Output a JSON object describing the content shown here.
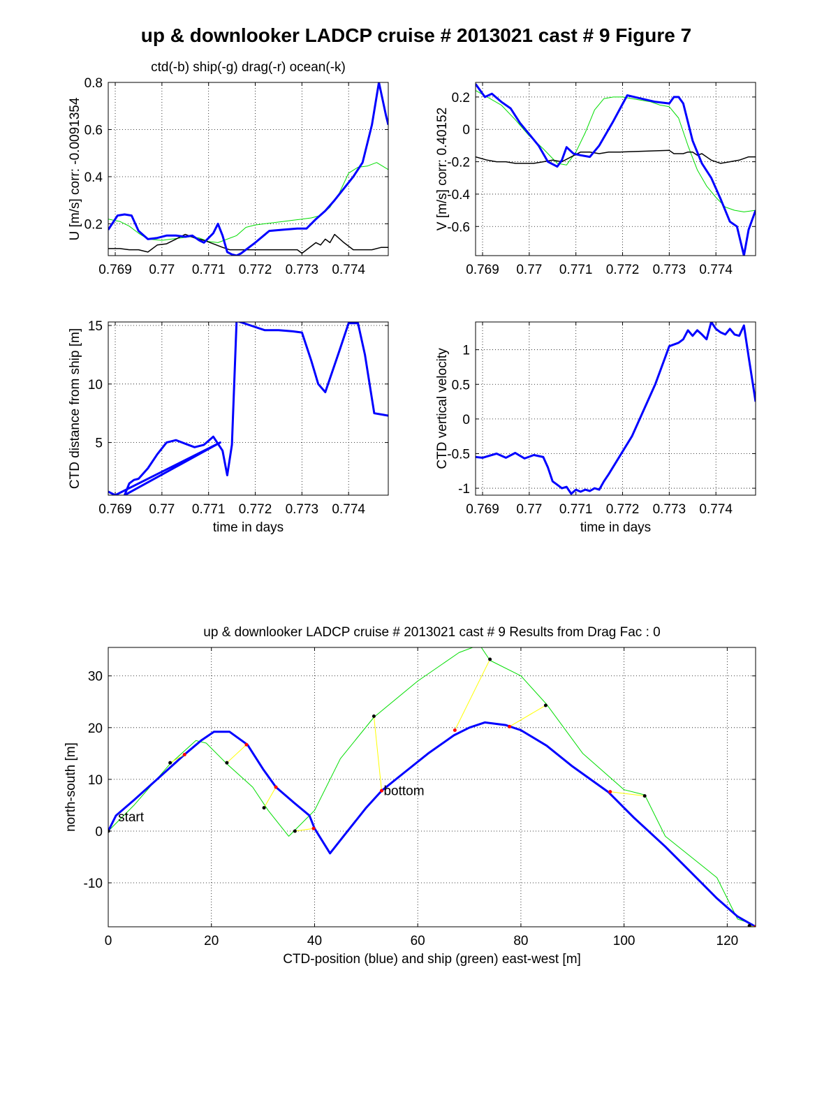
{
  "suptitle": "up & downlooker LADCP cruise # 2013021 cast # 9  Figure 7",
  "colors": {
    "ctd": "#0000ff",
    "ship": "#00dd00",
    "ocean": "#000000",
    "drag": "#ff0000",
    "link": "#ffff00"
  },
  "chart_data": [
    {
      "id": "u",
      "type": "line",
      "title": "ctd(-b) ship(-g) drag(-r) ocean(-k)",
      "xlabel": "",
      "ylabel": "U [m/s] corr: -0.0091354",
      "xlim": [
        0.76885,
        0.77485
      ],
      "ylim": [
        0.065,
        0.8
      ],
      "xticks": [
        0.769,
        0.77,
        0.771,
        0.772,
        0.773,
        0.774
      ],
      "xtick_labels": [
        "0.769",
        "0.77",
        "0.771",
        "0.772",
        "0.773",
        "0.774"
      ],
      "yticks": [
        0.2,
        0.4,
        0.6,
        0.8
      ],
      "ytick_labels": [
        "0.2",
        "0.4",
        "0.6",
        "0.8"
      ],
      "grid": true,
      "series": [
        {
          "color": "ship",
          "width": 1,
          "x": [
            0.76885,
            0.7691,
            0.7693,
            0.7695,
            0.7697,
            0.77,
            0.7702,
            0.7704,
            0.7706,
            0.7708,
            0.771,
            0.7712,
            0.7714,
            0.7716,
            0.7718,
            0.772,
            0.7722,
            0.7724,
            0.7726,
            0.7728,
            0.773,
            0.7732,
            0.7734,
            0.7736,
            0.7738,
            0.774,
            0.7742,
            0.7744,
            0.7746,
            0.77485
          ],
          "y": [
            0.22,
            0.21,
            0.19,
            0.16,
            0.135,
            0.13,
            0.135,
            0.14,
            0.145,
            0.14,
            0.125,
            0.12,
            0.135,
            0.15,
            0.185,
            0.195,
            0.2,
            0.205,
            0.21,
            0.215,
            0.22,
            0.225,
            0.235,
            0.27,
            0.33,
            0.415,
            0.44,
            0.445,
            0.46,
            0.43
          ]
        },
        {
          "color": "ocean",
          "width": 1.5,
          "x": [
            0.76885,
            0.7691,
            0.7693,
            0.7695,
            0.7697,
            0.7699,
            0.7701,
            0.7703,
            0.7705,
            0.7707,
            0.7709,
            0.7711,
            0.7713,
            0.77145,
            0.7729,
            0.773,
            0.7731,
            0.7733,
            0.7734,
            0.7735,
            0.7736,
            0.7737,
            0.7739,
            0.7741,
            0.7743,
            0.7745,
            0.7747,
            0.77485
          ],
          "y": [
            0.095,
            0.095,
            0.09,
            0.09,
            0.08,
            0.11,
            0.115,
            0.135,
            0.155,
            0.14,
            0.13,
            0.115,
            0.1,
            0.09,
            0.09,
            0.075,
            0.09,
            0.12,
            0.11,
            0.135,
            0.12,
            0.155,
            0.12,
            0.09,
            0.09,
            0.09,
            0.1,
            0.1
          ]
        },
        {
          "color": "ctd",
          "width": 3,
          "x": [
            0.76885,
            0.76905,
            0.7692,
            0.76935,
            0.7695,
            0.7697,
            0.7699,
            0.7701,
            0.7703,
            0.7705,
            0.77065,
            0.7708,
            0.7709,
            0.7711,
            0.7712,
            0.7713,
            0.7714,
            0.7715,
            0.7716,
            0.7717,
            0.772,
            0.7723,
            0.7726,
            0.7729,
            0.7731,
            0.7733,
            0.7735,
            0.7737,
            0.7739,
            0.7741,
            0.7743,
            0.7745,
            0.77465,
            0.7748,
            0.77485
          ],
          "y": [
            0.175,
            0.235,
            0.24,
            0.235,
            0.17,
            0.135,
            0.14,
            0.15,
            0.15,
            0.145,
            0.15,
            0.13,
            0.12,
            0.16,
            0.2,
            0.15,
            0.08,
            0.07,
            0.065,
            0.075,
            0.12,
            0.17,
            0.175,
            0.18,
            0.18,
            0.22,
            0.255,
            0.3,
            0.35,
            0.4,
            0.46,
            0.62,
            0.8,
            0.66,
            0.62
          ]
        }
      ]
    },
    {
      "id": "v",
      "type": "line",
      "title": "",
      "xlabel": "",
      "ylabel": "V [m/s] corr: 0.40152",
      "xlim": [
        0.76885,
        0.77485
      ],
      "ylim": [
        -0.78,
        0.29
      ],
      "xticks": [
        0.769,
        0.77,
        0.771,
        0.772,
        0.773,
        0.774
      ],
      "xtick_labels": [
        "0.769",
        "0.77",
        "0.771",
        "0.772",
        "0.773",
        "0.774"
      ],
      "yticks": [
        -0.6,
        -0.4,
        -0.2,
        0,
        0.2
      ],
      "ytick_labels": [
        "-0.6",
        "-0.4",
        "-0.2",
        "0",
        "0.2"
      ],
      "grid": true,
      "series": [
        {
          "color": "ship",
          "width": 1,
          "x": [
            0.76885,
            0.7691,
            0.7694,
            0.7697,
            0.77,
            0.7703,
            0.7706,
            0.7708,
            0.771,
            0.7712,
            0.7714,
            0.7716,
            0.7718,
            0.772,
            0.7722,
            0.7724,
            0.7726,
            0.7728,
            0.773,
            0.7732,
            0.7734,
            0.7736,
            0.7738,
            0.774,
            0.7742,
            0.7744,
            0.7746,
            0.77485
          ],
          "y": [
            0.24,
            0.2,
            0.15,
            0.06,
            -0.04,
            -0.12,
            -0.21,
            -0.22,
            -0.14,
            -0.02,
            0.12,
            0.19,
            0.2,
            0.2,
            0.19,
            0.18,
            0.17,
            0.15,
            0.14,
            0.07,
            -0.1,
            -0.25,
            -0.35,
            -0.42,
            -0.48,
            -0.5,
            -0.51,
            -0.5
          ]
        },
        {
          "color": "ocean",
          "width": 1.5,
          "x": [
            0.76885,
            0.7691,
            0.7693,
            0.7695,
            0.7697,
            0.7699,
            0.7701,
            0.7703,
            0.7705,
            0.7707,
            0.7709,
            0.7711,
            0.7713,
            0.7715,
            0.7717,
            0.77195,
            0.773,
            0.7731,
            0.7733,
            0.7734,
            0.7735,
            0.7736,
            0.7737,
            0.7739,
            0.7741,
            0.7743,
            0.7745,
            0.7747,
            0.77485
          ],
          "y": [
            -0.17,
            -0.19,
            -0.2,
            -0.2,
            -0.21,
            -0.21,
            -0.21,
            -0.2,
            -0.19,
            -0.2,
            -0.17,
            -0.14,
            -0.14,
            -0.15,
            -0.14,
            -0.14,
            -0.13,
            -0.15,
            -0.15,
            -0.14,
            -0.14,
            -0.16,
            -0.15,
            -0.19,
            -0.21,
            -0.2,
            -0.19,
            -0.17,
            -0.17
          ]
        },
        {
          "color": "ctd",
          "width": 3,
          "x": [
            0.76885,
            0.76905,
            0.7692,
            0.7694,
            0.7696,
            0.7698,
            0.77,
            0.7702,
            0.7704,
            0.7706,
            0.7707,
            0.7708,
            0.77095,
            0.7711,
            0.7713,
            0.7715,
            0.7718,
            0.7721,
            0.7724,
            0.7727,
            0.773,
            0.7731,
            0.7732,
            0.7733,
            0.7735,
            0.7737,
            0.7739,
            0.7741,
            0.7743,
            0.77445,
            0.7746,
            0.7747,
            0.77485
          ],
          "y": [
            0.28,
            0.2,
            0.22,
            0.17,
            0.13,
            0.04,
            -0.03,
            -0.1,
            -0.2,
            -0.23,
            -0.19,
            -0.11,
            -0.15,
            -0.16,
            -0.17,
            -0.1,
            0.05,
            0.21,
            0.19,
            0.17,
            0.16,
            0.2,
            0.2,
            0.16,
            -0.07,
            -0.21,
            -0.3,
            -0.43,
            -0.57,
            -0.6,
            -0.78,
            -0.62,
            -0.5
          ]
        }
      ]
    },
    {
      "id": "dist",
      "type": "line",
      "title": "",
      "xlabel": "time in days",
      "ylabel": "CTD distance from ship [m]",
      "xlim": [
        0.76885,
        0.77485
      ],
      "ylim": [
        0.5,
        15.3
      ],
      "xticks": [
        0.769,
        0.77,
        0.771,
        0.772,
        0.773,
        0.774
      ],
      "xtick_labels": [
        "0.769",
        "0.77",
        "0.771",
        "0.772",
        "0.773",
        "0.774"
      ],
      "yticks": [
        5,
        10,
        15
      ],
      "ytick_labels": [
        "5",
        "10",
        "15"
      ],
      "grid": true,
      "series": [
        {
          "color": "ctd",
          "width": 3,
          "x": [
            0.76885,
            0.769,
            0.77125,
            0.7692,
            0.7693,
            0.7694,
            0.7695,
            0.7697,
            0.7699,
            0.7701,
            0.7703,
            0.7705,
            0.7707,
            0.7709,
            0.7711,
            0.7713,
            0.7714,
            0.7715,
            0.7716,
            0.7719,
            0.7722,
            0.7725,
            0.7728,
            0.773,
            0.7732,
            0.77335,
            0.7735,
            0.7738,
            0.774,
            0.7742,
            0.77435,
            0.77455,
            0.7747,
            0.77485
          ],
          "y": [
            0.8,
            0.5,
            5,
            0.5,
            1.5,
            1.8,
            1.9,
            2.8,
            4,
            5,
            5.2,
            4.9,
            4.6,
            4.8,
            5.5,
            4.3,
            2.2,
            4.8,
            15.4,
            15,
            14.6,
            14.6,
            14.5,
            14.4,
            12,
            10,
            9.3,
            12.8,
            15.2,
            15.2,
            12.5,
            7.5,
            7.4,
            7.3
          ]
        }
      ]
    },
    {
      "id": "w",
      "type": "line",
      "title": "",
      "xlabel": "time in days",
      "ylabel": "CTD vertical velocity",
      "xlim": [
        0.76885,
        0.77485
      ],
      "ylim": [
        -1.1,
        1.4
      ],
      "xticks": [
        0.769,
        0.77,
        0.771,
        0.772,
        0.773,
        0.774
      ],
      "xtick_labels": [
        "0.769",
        "0.77",
        "0.771",
        "0.772",
        "0.773",
        "0.774"
      ],
      "yticks": [
        -1,
        -0.5,
        0,
        0.5,
        1
      ],
      "ytick_labels": [
        "-1",
        "-0.5",
        "0",
        "0.5",
        "1"
      ],
      "grid": true,
      "series": [
        {
          "color": "ctd",
          "width": 3,
          "x": [
            0.76885,
            0.769,
            0.7691,
            0.7693,
            0.7695,
            0.7697,
            0.7699,
            0.7701,
            0.7703,
            0.7704,
            0.7705,
            0.7706,
            0.7707,
            0.7708,
            0.7709,
            0.771,
            0.7711,
            0.7712,
            0.7713,
            0.7714,
            0.7715,
            0.7716,
            0.7717,
            0.7722,
            0.7727,
            0.773,
            0.7732,
            0.7733,
            0.7734,
            0.7735,
            0.7736,
            0.7737,
            0.7738,
            0.7739,
            0.774,
            0.7741,
            0.7742,
            0.7743,
            0.7744,
            0.7745,
            0.7746,
            0.7747,
            0.77485
          ],
          "y": [
            -0.55,
            -0.56,
            -0.54,
            -0.5,
            -0.56,
            -0.49,
            -0.57,
            -0.52,
            -0.55,
            -0.7,
            -0.9,
            -0.95,
            -1.0,
            -0.98,
            -1.08,
            -1.02,
            -1.05,
            -1.02,
            -1.04,
            -1.0,
            -1.02,
            -0.9,
            -0.8,
            -0.25,
            0.5,
            1.05,
            1.1,
            1.15,
            1.28,
            1.2,
            1.28,
            1.22,
            1.15,
            1.4,
            1.3,
            1.25,
            1.22,
            1.3,
            1.22,
            1.2,
            1.35,
            0.9,
            0.25
          ]
        }
      ]
    },
    {
      "id": "track",
      "type": "line",
      "title": "up & downlooker LADCP cruise # 2013021 cast # 9 Results from Drag Fac : 0",
      "xlabel": "CTD-position (blue) and ship (green) east-west [m]",
      "ylabel": "north-south [m]",
      "xlim": [
        0,
        125.5
      ],
      "ylim": [
        -18.5,
        35.5
      ],
      "xticks": [
        0,
        20,
        40,
        60,
        80,
        100,
        120
      ],
      "xtick_labels": [
        "0",
        "20",
        "40",
        "60",
        "80",
        "100",
        "120"
      ],
      "yticks": [
        -10,
        0,
        10,
        20,
        30
      ],
      "ytick_labels": [
        "-10",
        "0",
        "10",
        "20",
        "30"
      ],
      "grid": true,
      "series": [
        {
          "color": "ship",
          "width": 1,
          "x": [
            0,
            5,
            12,
            17,
            19,
            23,
            28,
            31,
            35,
            36,
            40,
            45,
            51.5,
            60,
            68,
            72,
            74,
            80,
            85,
            92,
            100,
            104,
            108,
            113,
            118,
            122,
            125
          ],
          "y": [
            0,
            5,
            13,
            17.5,
            17,
            13,
            8.5,
            4,
            -1,
            0,
            4,
            14,
            22,
            29,
            34.5,
            36,
            33,
            30,
            24.5,
            15,
            8,
            7,
            -1,
            -5,
            -9,
            -17,
            -18
          ]
        },
        {
          "color": "ctd",
          "width": 3,
          "x": [
            0,
            1.5,
            5,
            10,
            14.8,
            18,
            20.5,
            23.5,
            27,
            30,
            32.5,
            36,
            39,
            40,
            43,
            46,
            50,
            53,
            57,
            62,
            67,
            70,
            73,
            77,
            80,
            85,
            90,
            97,
            102,
            108,
            113,
            118,
            122,
            125.5
          ],
          "y": [
            0,
            3,
            6,
            10.5,
            14.8,
            17.5,
            19.2,
            19.2,
            16.7,
            12,
            8.5,
            5.5,
            3,
            0.5,
            -4.3,
            -0.5,
            4.5,
            7.8,
            11,
            15,
            18.5,
            20,
            21,
            20.5,
            19.5,
            16.5,
            12.5,
            7.5,
            2.5,
            -3,
            -8,
            -13,
            -16.5,
            -18.5
          ]
        }
      ],
      "links": [
        {
          "ship": [
            12,
            13.2
          ],
          "ctd": [
            14.8,
            14.8
          ]
        },
        {
          "ship": [
            23,
            13.2
          ],
          "ctd": [
            26.8,
            16.7
          ]
        },
        {
          "ship": [
            30.2,
            4.5
          ],
          "ctd": [
            32.5,
            8.5
          ]
        },
        {
          "ship": [
            36.2,
            0
          ],
          "ctd": [
            39.8,
            0.5
          ]
        },
        {
          "ship": [
            51.5,
            22.2
          ],
          "ctd": [
            53,
            7.8
          ]
        },
        {
          "ship": [
            74,
            33.2
          ],
          "ctd": [
            67.2,
            19.5
          ]
        },
        {
          "ship": [
            84.8,
            24.3
          ],
          "ctd": [
            77.8,
            20.2
          ]
        },
        {
          "ship": [
            104,
            6.8
          ],
          "ctd": [
            97.3,
            7.6
          ]
        },
        {
          "ship": [
            124.3,
            -18.3
          ],
          "ctd": [
            125.5,
            -18.5
          ]
        }
      ],
      "annotations": [
        {
          "text": "start",
          "x": 1.5,
          "y": 2.8
        },
        {
          "text": "bottom",
          "x": 53,
          "y": 7.9
        }
      ]
    }
  ]
}
